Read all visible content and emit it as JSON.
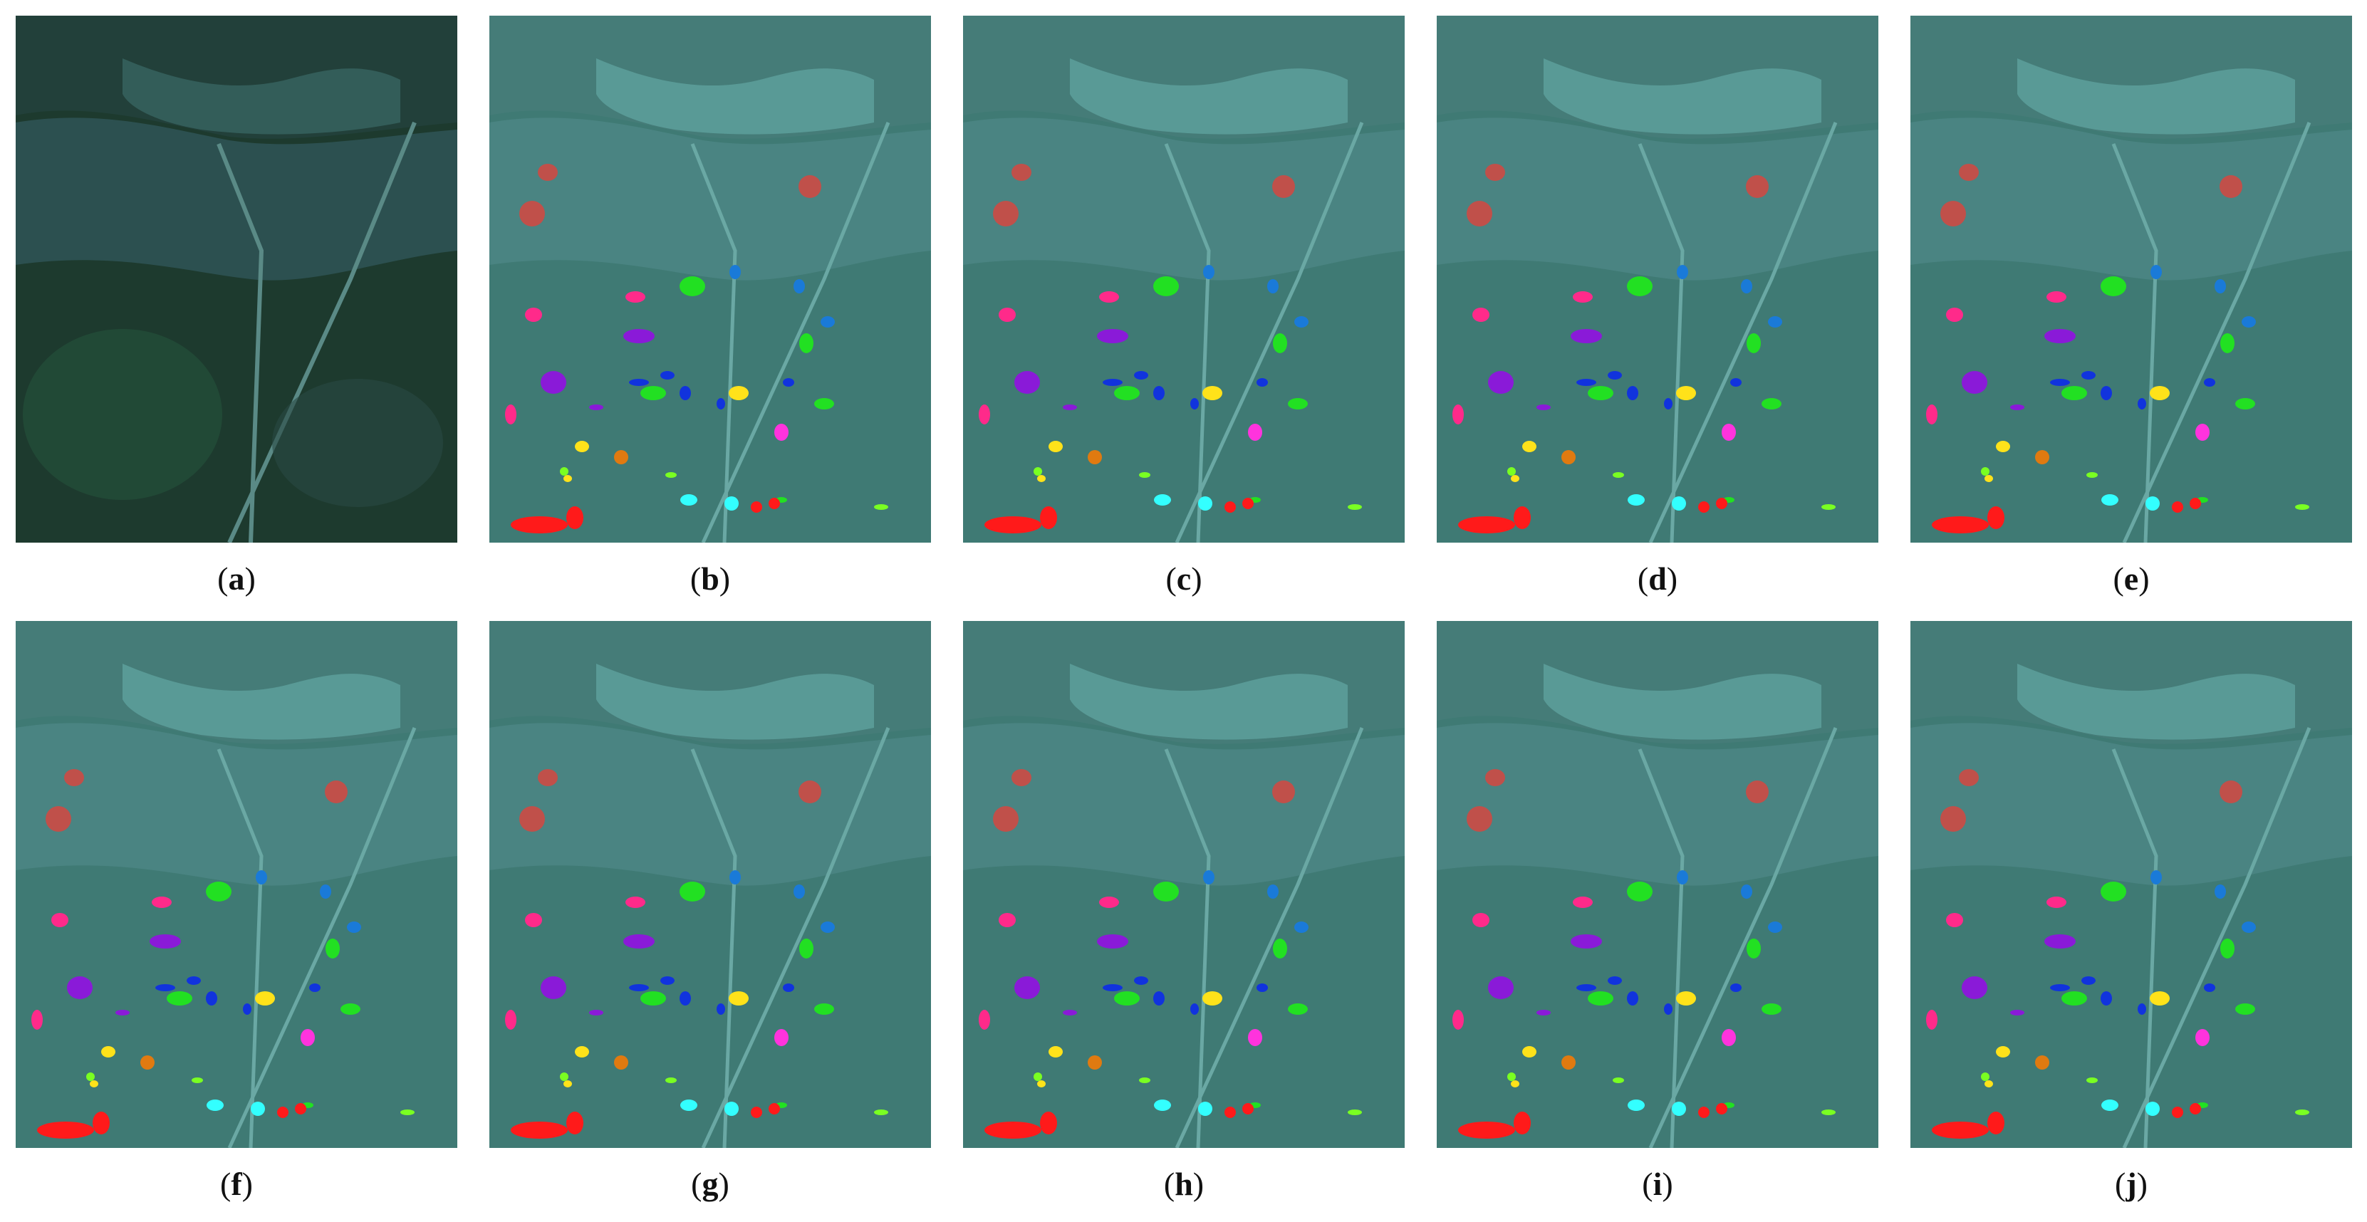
{
  "panels": [
    {
      "id": "a",
      "caption_letter": "a",
      "kind": "original"
    },
    {
      "id": "b",
      "caption_letter": "b",
      "kind": "map"
    },
    {
      "id": "c",
      "caption_letter": "c",
      "kind": "map"
    },
    {
      "id": "d",
      "caption_letter": "d",
      "kind": "map"
    },
    {
      "id": "e",
      "caption_letter": "e",
      "kind": "map"
    },
    {
      "id": "f",
      "caption_letter": "f",
      "kind": "map"
    },
    {
      "id": "g",
      "caption_letter": "g",
      "kind": "map"
    },
    {
      "id": "h",
      "caption_letter": "h",
      "kind": "map"
    },
    {
      "id": "i",
      "caption_letter": "i",
      "kind": "map"
    },
    {
      "id": "j",
      "caption_letter": "j",
      "kind": "map"
    }
  ],
  "colors": {
    "original_water": "#2c5050",
    "original_land": "#1d3a2e",
    "original_city": "#3a6a66",
    "map_base": "#3f7a74",
    "map_water": "#4a8482",
    "map_city": "#6ab3ae",
    "class_red": "#ff1a1a",
    "class_brick": "#c0504a",
    "class_green": "#22e022",
    "class_blue": "#1133dd",
    "class_skyblue": "#1a7ad8",
    "class_magenta": "#ff2a8a",
    "class_purple": "#8a1ad8",
    "class_yellow": "#ffe21a",
    "class_orange": "#e07a10",
    "class_cyan": "#33ffff",
    "class_pink": "#ff33dd",
    "class_lime": "#7aff22"
  }
}
